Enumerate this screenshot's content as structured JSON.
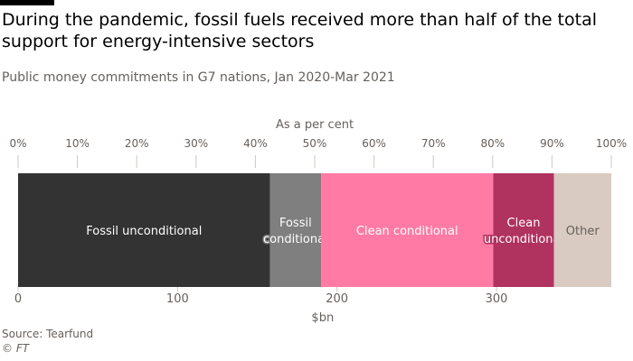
{
  "title": "During the pandemic, fossil fuels received more than half of the total support for energy-intensive sectors",
  "subtitle": "Public money commitments in G7 nations, Jan 2020-Mar 2021",
  "source": "Source: Tearfund",
  "credit": "© FT",
  "chart_data": {
    "type": "bar",
    "orientation": "horizontal-stacked",
    "top_axis": {
      "label": "As a per cent",
      "ticks": [
        "0%",
        "10%",
        "20%",
        "30%",
        "40%",
        "50%",
        "60%",
        "70%",
        "80%",
        "90%",
        "100%"
      ],
      "range": [
        0,
        100
      ]
    },
    "bottom_axis": {
      "label": "$bn",
      "ticks": [
        "0",
        "100",
        "200",
        "300"
      ],
      "tick_values": [
        0,
        100,
        200,
        300
      ],
      "range": [
        0,
        373
      ]
    },
    "series": [
      {
        "name": "Fossil unconditional",
        "label_lines": [
          "Fossil unconditional"
        ],
        "value": 158,
        "color": "#333333",
        "label_color": "#ffffff"
      },
      {
        "name": "Fossil conditional",
        "label_lines": [
          "Fossil",
          "conditional"
        ],
        "value": 32,
        "color": "#7f7f7f",
        "label_color": "#ffffff"
      },
      {
        "name": "Clean conditional",
        "label_lines": [
          "Clean conditional"
        ],
        "value": 108,
        "color": "#ff7aa5",
        "label_color": "#ffffff"
      },
      {
        "name": "Clean unconditional",
        "label_lines": [
          "Clean",
          "unconditional"
        ],
        "value": 38,
        "color": "#b0325f",
        "label_color": "#ffffff"
      },
      {
        "name": "Other",
        "label_lines": [
          "Other"
        ],
        "value": 36,
        "color": "#d9cbc1",
        "label_color": "#66605c"
      }
    ]
  }
}
